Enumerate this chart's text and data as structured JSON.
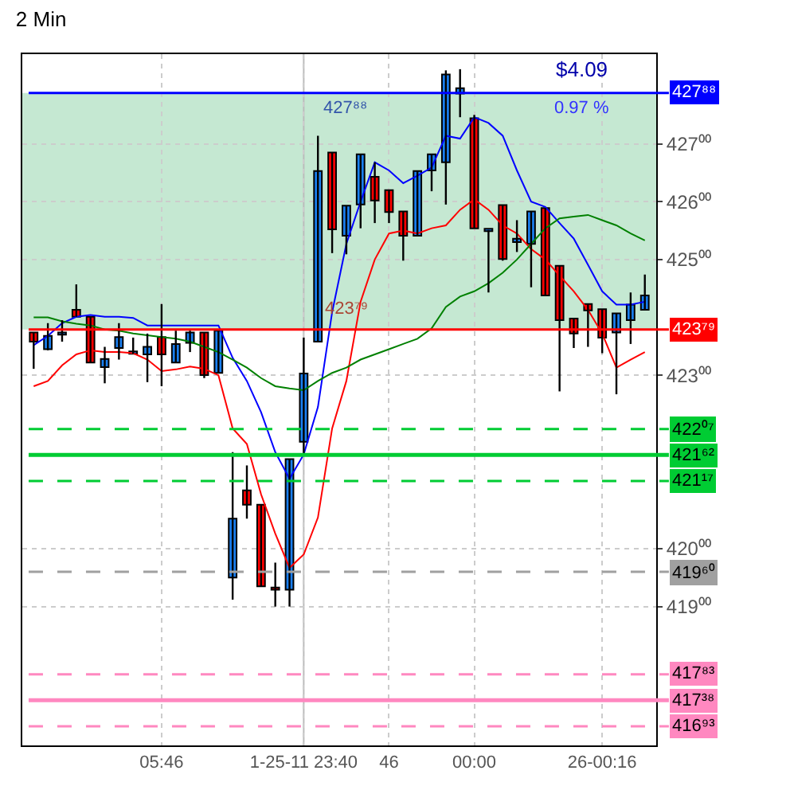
{
  "chart_data": {
    "type": "candlestick",
    "title": "2 Min",
    "categories": [
      null,
      null,
      null,
      null,
      null,
      null,
      null,
      null,
      null,
      "05:46",
      null,
      null,
      null,
      null,
      null,
      null,
      null,
      null,
      null,
      "1-25-11 23:40",
      null,
      null,
      null,
      null,
      null,
      "46",
      null,
      null,
      null,
      null,
      null,
      "00:00",
      null,
      null,
      null,
      null,
      null,
      null,
      null,
      null,
      "26-00:16",
      null,
      null,
      null
    ],
    "series": [
      {
        "type": "candlestick",
        "colors": [
          "#ff0000",
          "#1a7ff0",
          "#1a7ff0",
          "#ff0000",
          "#ff0000",
          "#1a7ff0",
          "#1a7ff0",
          "#1a7ff0",
          "#1a7ff0",
          "#ff0000",
          "#1a7ff0",
          "#1a7ff0",
          "#ff0000",
          "#1a7ff0",
          "#1a7ff0",
          "#ff0000",
          "#ff0000",
          "#ff0000",
          "#1a7ff0",
          "#1a7ff0",
          "#1a7ff0",
          "#ff0000",
          "#1a7ff0",
          "#1a7ff0",
          "#ff0000",
          "#ff0000",
          "#ff0000",
          "#1a7ff0",
          "#1a7ff0",
          "#1a7ff0",
          "#1a7ff0",
          "#ff0000",
          "#1a7ff0",
          "#ff0000",
          "#1a7ff0",
          "#1a7ff0",
          "#ff0000",
          "#ff0000",
          "#ff0000",
          "#ff0000",
          "#ff0000",
          "#1a7ff0",
          "#1a7ff0",
          "#1a7ff0"
        ],
        "ohlc": [
          [
            423.74,
            423.74,
            423.11,
            423.58
          ],
          [
            423.45,
            423.9,
            423.43,
            423.68
          ],
          [
            423.7,
            423.95,
            423.58,
            423.72
          ],
          [
            424.13,
            424.57,
            424.01,
            424.01
          ],
          [
            424.01,
            424.01,
            423.22,
            423.22
          ],
          [
            423.14,
            423.49,
            422.86,
            423.28
          ],
          [
            423.47,
            423.9,
            423.27,
            423.66
          ],
          [
            423.37,
            423.65,
            423.37,
            423.39
          ],
          [
            423.36,
            423.72,
            422.88,
            423.49
          ],
          [
            423.66,
            424.23,
            422.81,
            423.36
          ],
          [
            423.22,
            423.77,
            423.22,
            423.54
          ],
          [
            423.56,
            423.77,
            423.4,
            423.74
          ],
          [
            423.74,
            423.74,
            422.95,
            423.0
          ],
          [
            423.04,
            423.79,
            423.04,
            423.77
          ],
          [
            419.5,
            421.67,
            419.12,
            420.52
          ],
          [
            421.01,
            421.44,
            420.52,
            420.76
          ],
          [
            420.76,
            420.76,
            419.35,
            419.35
          ],
          [
            419.31,
            419.76,
            419.0,
            419.29
          ],
          [
            419.29,
            421.55,
            419.0,
            421.55
          ],
          [
            421.85,
            423.65,
            421.64,
            423.03
          ],
          [
            423.58,
            427.14,
            423.58,
            426.53
          ],
          [
            426.85,
            426.85,
            425.11,
            425.52
          ],
          [
            425.41,
            425.93,
            425.09,
            425.93
          ],
          [
            425.95,
            426.82,
            425.54,
            426.82
          ],
          [
            426.43,
            426.68,
            425.63,
            426.02
          ],
          [
            426.2,
            426.2,
            425.63,
            425.82
          ],
          [
            425.83,
            425.83,
            424.98,
            425.41
          ],
          [
            425.41,
            426.53,
            425.41,
            426.53
          ],
          [
            426.54,
            426.82,
            426.18,
            426.82
          ],
          [
            426.68,
            428.27,
            425.95,
            428.2
          ],
          [
            427.87,
            428.29,
            427.46,
            427.96
          ],
          [
            427.44,
            427.5,
            425.54,
            425.54
          ],
          [
            425.49,
            425.51,
            424.43,
            425.51
          ],
          [
            425.94,
            425.94,
            424.98,
            425.01
          ],
          [
            425.3,
            425.68,
            425.13,
            425.36
          ],
          [
            425.27,
            425.83,
            424.52,
            425.83
          ],
          [
            425.89,
            425.89,
            424.38,
            424.38
          ],
          [
            424.89,
            424.89,
            422.72,
            423.95
          ],
          [
            423.98,
            423.98,
            423.47,
            423.72
          ],
          [
            424.23,
            424.23,
            423.49,
            424.12
          ],
          [
            424.14,
            424.14,
            423.38,
            423.65
          ],
          [
            423.74,
            424.07,
            422.67,
            424.07
          ],
          [
            423.95,
            424.43,
            423.54,
            424.22
          ],
          [
            424.13,
            424.74,
            424.13,
            424.38
          ]
        ]
      },
      {
        "type": "line",
        "color": "#0000ff",
        "values": [
          423.52,
          423.68,
          423.9,
          424.01,
          424.04,
          424.01,
          424.01,
          423.99,
          423.86,
          423.86,
          423.86,
          423.86,
          423.86,
          423.86,
          423.3,
          422.9,
          422.36,
          421.67,
          421.21,
          421.63,
          422.45,
          424.09,
          425.27,
          426.0,
          426.68,
          426.54,
          426.32,
          426.45,
          426.59,
          427.14,
          427.09,
          427.46,
          427.36,
          427.14,
          426.54,
          426.0,
          425.91,
          425.63,
          425.36,
          424.91,
          424.45,
          424.22,
          424.22,
          424.27
        ]
      },
      {
        "type": "line",
        "color": "#ff0000",
        "values": [
          422.81,
          422.9,
          423.17,
          423.36,
          423.43,
          423.4,
          423.4,
          423.38,
          423.27,
          423.07,
          423.1,
          423.15,
          423.11,
          423.0,
          422.08,
          421.81,
          420.94,
          420.26,
          419.67,
          419.9,
          420.54,
          422.08,
          422.9,
          424.27,
          425.0,
          425.45,
          425.5,
          425.45,
          425.54,
          425.59,
          425.86,
          426.04,
          425.86,
          425.59,
          425.45,
          425.18,
          425.0,
          424.72,
          424.45,
          424.13,
          423.72,
          423.13,
          423.27,
          423.4
        ]
      },
      {
        "type": "line",
        "color": "#008000",
        "values": [
          424.0,
          424.0,
          423.93,
          423.89,
          423.86,
          423.79,
          423.77,
          423.72,
          423.69,
          423.66,
          423.63,
          423.58,
          423.49,
          423.4,
          423.27,
          423.13,
          422.95,
          422.81,
          422.77,
          422.74,
          422.9,
          423.04,
          423.13,
          423.27,
          423.36,
          423.45,
          423.54,
          423.63,
          423.81,
          424.18,
          424.36,
          424.45,
          424.59,
          424.77,
          425.0,
          425.27,
          425.54,
          425.71,
          425.74,
          425.77,
          425.68,
          425.59,
          425.45,
          425.33
        ]
      }
    ],
    "ylim": [
      416.6,
      428.55
    ],
    "yticks": [
      {
        "value": 419,
        "label": "419⁰⁰"
      },
      {
        "value": 420,
        "label": "420⁰⁰"
      },
      {
        "value": 423,
        "label": "423⁰⁰"
      },
      {
        "value": 425,
        "label": "425⁰⁰"
      },
      {
        "value": 426,
        "label": "426⁰⁰"
      },
      {
        "value": 427,
        "label": "427⁰⁰"
      }
    ],
    "grid": true,
    "bands": [
      {
        "axis": "y",
        "from": 423.79,
        "to": 427.88,
        "color": "#9fd9b4"
      }
    ],
    "ref_lines": [
      {
        "axis": "x",
        "value": "1-25-11 23:40",
        "color": "#bbbbbb",
        "line_style": "solid"
      },
      {
        "axis": "y",
        "value": 427.88,
        "label": "427⁸⁸",
        "color": "#0000ff",
        "line_style": "solid"
      },
      {
        "axis": "y",
        "value": 423.79,
        "label": "423⁷⁹",
        "color": "#ff0000",
        "line_style": "solid"
      },
      {
        "axis": "y",
        "value": 422.07,
        "label": "422⁰⁷",
        "color": "#00cc33",
        "line_style": "dashed"
      },
      {
        "axis": "y",
        "value": 421.62,
        "label": "421⁶²",
        "color": "#00cc33",
        "line_style": "solid"
      },
      {
        "axis": "y",
        "value": 421.17,
        "label": "421¹⁷",
        "color": "#00cc33",
        "line_style": "dashed"
      },
      {
        "axis": "y",
        "value": 419.6,
        "label": "419⁶⁰",
        "color": "#a0a0a0",
        "line_style": "dashed"
      },
      {
        "axis": "y",
        "value": 417.83,
        "label": "417⁸³",
        "color": "#ff88c0",
        "line_style": "dashed"
      },
      {
        "axis": "y",
        "value": 417.38,
        "label": "417³⁸",
        "color": "#ff88c0",
        "line_style": "solid"
      },
      {
        "axis": "y",
        "value": 416.93,
        "label": "416⁹³",
        "color": "#ff88c0",
        "line_style": "dashed"
      }
    ],
    "annotations": [
      {
        "text": "$4.09",
        "y": 427.88
      },
      {
        "text": "0.97 %",
        "y": 427.88
      },
      {
        "text": "427⁸⁸",
        "y": 427.88
      },
      {
        "text": "423⁷⁹",
        "y": 423.79
      }
    ]
  }
}
